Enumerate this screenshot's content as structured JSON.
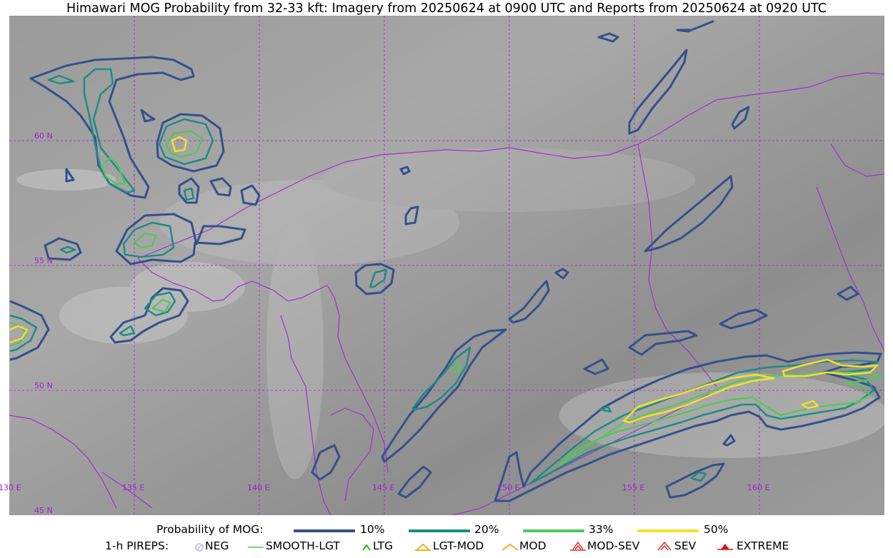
{
  "title": "Himawari MOG Probability from 32-33 kft: Imagery from 20250624 at 0900 UTC and Reports from 20250624 at 0920 UTC",
  "grid": {
    "lat_labels": [
      "60 N",
      "55 N",
      "50 N",
      "45 N"
    ],
    "lon_labels": [
      "130 E",
      "135 E",
      "140 E",
      "145 E",
      "150 E",
      "155 E",
      "160 E"
    ],
    "line_color": "#a020d0"
  },
  "colors": {
    "p10": "#34508c",
    "p20": "#1e8c84",
    "p33": "#50c85a",
    "p50": "#f5e02a",
    "coast": "#a030d0"
  },
  "legend": {
    "prob_title": "Probability of MOG:",
    "prob_items": [
      {
        "label": "10%",
        "color": "#34508c"
      },
      {
        "label": "20%",
        "color": "#1e8c84"
      },
      {
        "label": "33%",
        "color": "#50c85a"
      },
      {
        "label": "50%",
        "color": "#f5e02a"
      }
    ],
    "pirep_title": "1-h PIREPS:",
    "pirep_items": [
      {
        "label": "NEG",
        "icon": "neg-symbol-icon",
        "color": "#b8b8f0"
      },
      {
        "label": "SMOOTH-LGT",
        "icon": "line-icon",
        "color": "#40d040"
      },
      {
        "label": "LTG",
        "icon": "caret-icon",
        "color": "#20c020"
      },
      {
        "label": "LGT-MOD",
        "icon": "caret-bar-icon",
        "color": "#f0b020"
      },
      {
        "label": "MOD",
        "icon": "caret-icon",
        "color": "#f0b020"
      },
      {
        "label": "MOD-SEV",
        "icon": "double-caret-bar-icon",
        "color": "#e03030"
      },
      {
        "label": "SEV",
        "icon": "double-caret-icon",
        "color": "#e03030"
      },
      {
        "label": "EXTREME",
        "icon": "filled-caret-icon",
        "color": "#e01010"
      }
    ]
  }
}
